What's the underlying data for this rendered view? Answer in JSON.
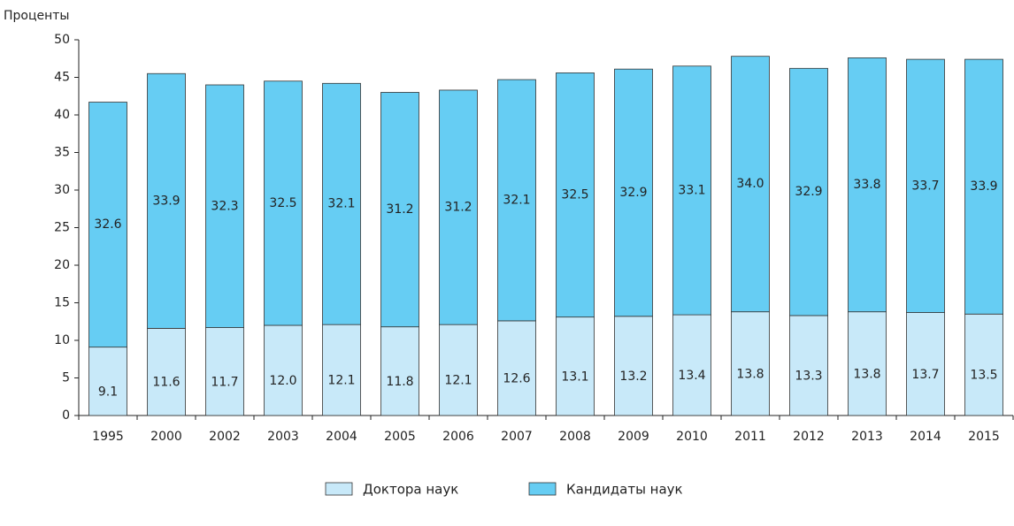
{
  "chart_data": {
    "type": "stacked_bar",
    "y_label": "Проценты",
    "categories": [
      "1995",
      "2000",
      "2002",
      "2003",
      "2004",
      "2005",
      "2006",
      "2007",
      "2008",
      "2009",
      "2010",
      "2011",
      "2012",
      "2013",
      "2014",
      "2015"
    ],
    "series": [
      {
        "name": "Доктора наук",
        "color": "#c8e9f9",
        "values": [
          9.1,
          11.6,
          11.7,
          12.0,
          12.1,
          11.8,
          12.1,
          12.6,
          13.1,
          13.2,
          13.4,
          13.8,
          13.3,
          13.8,
          13.7,
          13.5
        ],
        "value_labels": [
          "9.1",
          "11.6",
          "11.7",
          "12.0",
          "12.1",
          "11.8",
          "12.1",
          "12.6",
          "13.1",
          "13.2",
          "13.4",
          "13.8",
          "13.3",
          "13.8",
          "13.7",
          "13.5"
        ]
      },
      {
        "name": "Кандидаты наук",
        "color": "#66cdf3",
        "values": [
          32.6,
          33.9,
          32.3,
          32.5,
          32.1,
          31.2,
          31.2,
          32.1,
          32.5,
          32.9,
          33.1,
          34.0,
          32.9,
          33.8,
          33.7,
          33.9
        ],
        "value_labels": [
          "32.6",
          "33.9",
          "32.3",
          "32.5",
          "32.1",
          "31.2",
          "31.2",
          "32.1",
          "32.5",
          "32.9",
          "33.1",
          "34.0",
          "32.9",
          "33.8",
          "33.7",
          "33.9"
        ]
      }
    ],
    "ylim": [
      0,
      50
    ],
    "yticks": [
      0,
      5,
      10,
      15,
      20,
      25,
      30,
      35,
      40,
      45,
      50
    ]
  }
}
